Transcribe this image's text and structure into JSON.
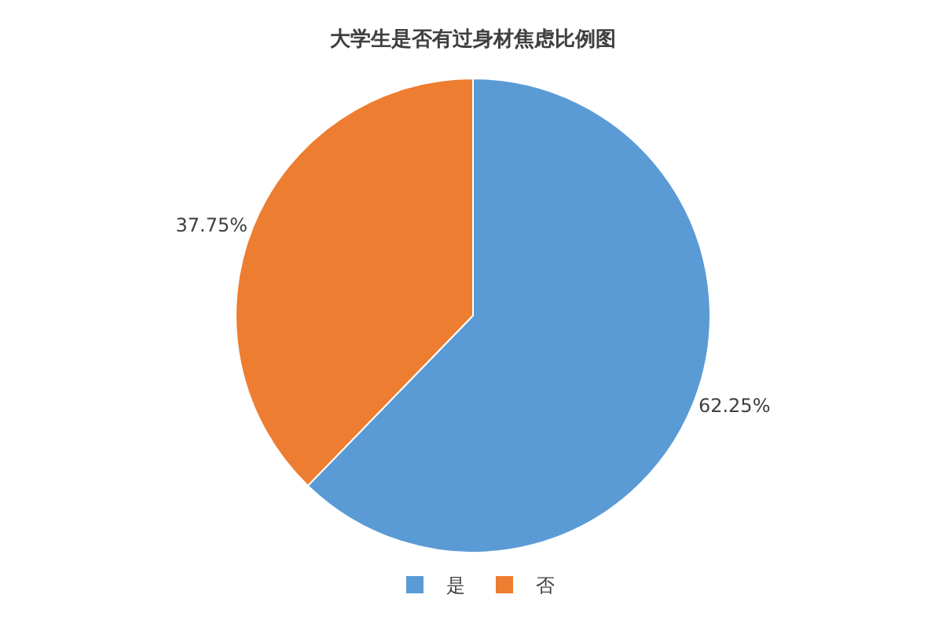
{
  "chart_data": {
    "type": "pie",
    "title": "大学生是否有过身材焦虑比例图",
    "categories": [
      "是",
      "否"
    ],
    "values": [
      62.25,
      37.75
    ],
    "colors": [
      "#5b9bd5",
      "#ed7d31"
    ],
    "value_labels": [
      "62.25%",
      "37.75%"
    ],
    "legend": "bottom"
  }
}
